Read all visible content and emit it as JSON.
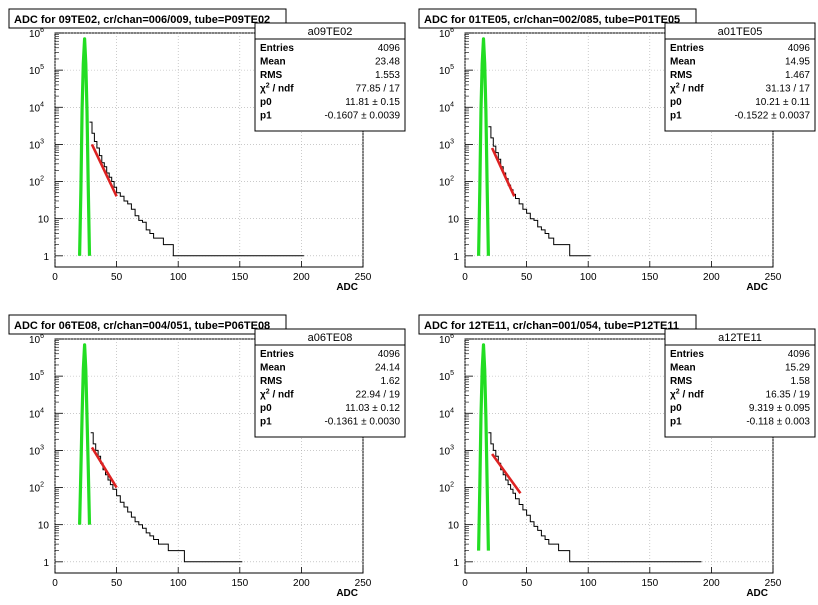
{
  "chart_data": [
    {
      "type": "histogram",
      "title": "ADC for 09TE02,  cr/chan=006/009,  tube=P09TE02",
      "xlabel": "ADC",
      "xlim": [
        0,
        250
      ],
      "ylim_log": [
        0.5,
        1000000
      ],
      "y_log_scale": true,
      "x_ticks": [
        "0",
        "50",
        "100",
        "150",
        "200",
        "250"
      ],
      "y_ticks": [
        "1",
        "10",
        "10^2",
        "10^3",
        "10^4",
        "10^5",
        "10^6"
      ],
      "grid": true,
      "stats": {
        "name": "a09TE02",
        "rows": [
          {
            "label": "Entries",
            "value": "4096"
          },
          {
            "label": "Mean",
            "value": "23.48"
          },
          {
            "label": "RMS",
            "value": "1.553"
          },
          {
            "label": "chi2ndf",
            "value": "77.85 / 17"
          },
          {
            "label": "p0",
            "value": "11.81 ± 0.15"
          },
          {
            "label": "p1",
            "value": "-0.1607 ± 0.0039"
          }
        ]
      },
      "green_peak": {
        "x": [
          20,
          21,
          22,
          23,
          24,
          25,
          26,
          27,
          28
        ],
        "y": [
          1,
          60,
          9000,
          150000,
          700000,
          150000,
          8000,
          60,
          1
        ]
      },
      "red_fit": {
        "x": [
          30,
          50
        ],
        "y": [
          1000,
          40
        ]
      },
      "tail": {
        "x": [
          28,
          30,
          32,
          34,
          36,
          38,
          40,
          42,
          44,
          46,
          48,
          50,
          53,
          56,
          59,
          62,
          65,
          68,
          71,
          74,
          77,
          80,
          84,
          88,
          92,
          96,
          100,
          104,
          110,
          118,
          128,
          140,
          160,
          200
        ],
        "y": [
          4000,
          2000,
          1200,
          800,
          500,
          320,
          250,
          170,
          130,
          100,
          70,
          50,
          40,
          30,
          25,
          18,
          12,
          9,
          8,
          5,
          4,
          3,
          3,
          2,
          2,
          1,
          1,
          1,
          1,
          1,
          1,
          1,
          1,
          1
        ]
      }
    },
    {
      "type": "histogram",
      "title": "ADC for 01TE05,  cr/chan=002/085,  tube=P01TE05",
      "xlabel": "ADC",
      "xlim": [
        0,
        250
      ],
      "ylim_log": [
        0.5,
        1000000
      ],
      "y_log_scale": true,
      "x_ticks": [
        "0",
        "50",
        "100",
        "150",
        "200",
        "250"
      ],
      "y_ticks": [
        "1",
        "10",
        "10^2",
        "10^3",
        "10^4",
        "10^5",
        "10^6"
      ],
      "grid": true,
      "stats": {
        "name": "a01TE05",
        "rows": [
          {
            "label": "Entries",
            "value": "4096"
          },
          {
            "label": "Mean",
            "value": "14.95"
          },
          {
            "label": "RMS",
            "value": "1.467"
          },
          {
            "label": "chi2ndf",
            "value": "31.13 / 17"
          },
          {
            "label": "p0",
            "value": "10.21 ± 0.11"
          },
          {
            "label": "p1",
            "value": "-0.1522 ± 0.0037"
          }
        ]
      },
      "green_peak": {
        "x": [
          11,
          12,
          13,
          14,
          15,
          16,
          17,
          18,
          19
        ],
        "y": [
          1,
          60,
          9000,
          150000,
          700000,
          150000,
          8000,
          60,
          1
        ]
      },
      "red_fit": {
        "x": [
          22,
          40
        ],
        "y": [
          800,
          40
        ]
      },
      "tail": {
        "x": [
          19,
          21,
          23,
          25,
          27,
          29,
          31,
          33,
          35,
          37,
          39,
          41,
          44,
          47,
          50,
          53,
          56,
          59,
          62,
          65,
          68,
          72,
          76,
          80,
          85,
          90,
          95,
          100
        ],
        "y": [
          3000,
          1500,
          900,
          600,
          400,
          250,
          170,
          120,
          80,
          60,
          45,
          35,
          25,
          18,
          14,
          10,
          9,
          6,
          5,
          4,
          3,
          2,
          2,
          2,
          1,
          1,
          1,
          1
        ]
      }
    },
    {
      "type": "histogram",
      "title": "ADC for 06TE08,  cr/chan=004/051,  tube=P06TE08",
      "xlabel": "ADC",
      "xlim": [
        0,
        250
      ],
      "ylim_log": [
        0.5,
        1000000
      ],
      "y_log_scale": true,
      "x_ticks": [
        "0",
        "50",
        "100",
        "150",
        "200",
        "250"
      ],
      "y_ticks": [
        "1",
        "10",
        "10^2",
        "10^3",
        "10^4",
        "10^5",
        "10^6"
      ],
      "grid": true,
      "stats": {
        "name": "a06TE08",
        "rows": [
          {
            "label": "Entries",
            "value": "4096"
          },
          {
            "label": "Mean",
            "value": "24.14"
          },
          {
            "label": "RMS",
            "value": "1.62"
          },
          {
            "label": "chi2ndf",
            "value": "22.94 / 19"
          },
          {
            "label": "p0",
            "value": "11.03 ± 0.12"
          },
          {
            "label": "p1",
            "value": "-0.1361 ± 0.0030"
          }
        ]
      },
      "green_peak": {
        "x": [
          20,
          21,
          22,
          23,
          24,
          25,
          26,
          27,
          28
        ],
        "y": [
          10,
          300,
          9000,
          150000,
          700000,
          150000,
          8000,
          300,
          10
        ]
      },
      "red_fit": {
        "x": [
          30,
          50
        ],
        "y": [
          1200,
          100
        ]
      },
      "tail": {
        "x": [
          29,
          31,
          33,
          35,
          37,
          39,
          41,
          43,
          45,
          47,
          50,
          53,
          56,
          59,
          62,
          65,
          68,
          71,
          74,
          77,
          80,
          84,
          88,
          92,
          96,
          100,
          105,
          110,
          120,
          130,
          140,
          150
        ],
        "y": [
          3000,
          1500,
          1000,
          700,
          450,
          300,
          220,
          160,
          120,
          90,
          60,
          40,
          30,
          22,
          16,
          12,
          10,
          8,
          6,
          5,
          4,
          3,
          3,
          2,
          2,
          2,
          1,
          1,
          1,
          1,
          1,
          1
        ]
      }
    },
    {
      "type": "histogram",
      "title": "ADC for 12TE11,  cr/chan=001/054,  tube=P12TE11",
      "xlabel": "ADC",
      "xlim": [
        0,
        250
      ],
      "ylim_log": [
        0.5,
        1000000
      ],
      "y_log_scale": true,
      "x_ticks": [
        "0",
        "50",
        "100",
        "150",
        "200",
        "250"
      ],
      "y_ticks": [
        "1",
        "10",
        "10^2",
        "10^3",
        "10^4",
        "10^5",
        "10^6"
      ],
      "grid": true,
      "stats": {
        "name": "a12TE11",
        "rows": [
          {
            "label": "Entries",
            "value": "4096"
          },
          {
            "label": "Mean",
            "value": "15.29"
          },
          {
            "label": "RMS",
            "value": "1.58"
          },
          {
            "label": "chi2ndf",
            "value": "16.35 / 19"
          },
          {
            "label": "p0",
            "value": "9.319 ± 0.095"
          },
          {
            "label": "p1",
            "value": "-0.118 ± 0.003"
          }
        ]
      },
      "green_peak": {
        "x": [
          11,
          12,
          13,
          14,
          15,
          16,
          17,
          18,
          19
        ],
        "y": [
          2,
          100,
          9000,
          150000,
          700000,
          150000,
          8000,
          100,
          2
        ]
      },
      "red_fit": {
        "x": [
          22,
          45
        ],
        "y": [
          800,
          70
        ]
      },
      "tail": {
        "x": [
          19,
          21,
          23,
          25,
          27,
          29,
          31,
          33,
          35,
          37,
          39,
          41,
          44,
          47,
          50,
          53,
          56,
          59,
          62,
          65,
          68,
          72,
          76,
          80,
          85,
          90,
          95,
          100,
          110,
          125,
          145,
          190
        ],
        "y": [
          3000,
          1500,
          1000,
          700,
          450,
          300,
          220,
          160,
          120,
          90,
          70,
          50,
          35,
          25,
          18,
          12,
          9,
          7,
          5,
          4,
          3,
          3,
          2,
          2,
          1,
          1,
          1,
          1,
          1,
          1,
          1,
          1
        ]
      }
    }
  ]
}
